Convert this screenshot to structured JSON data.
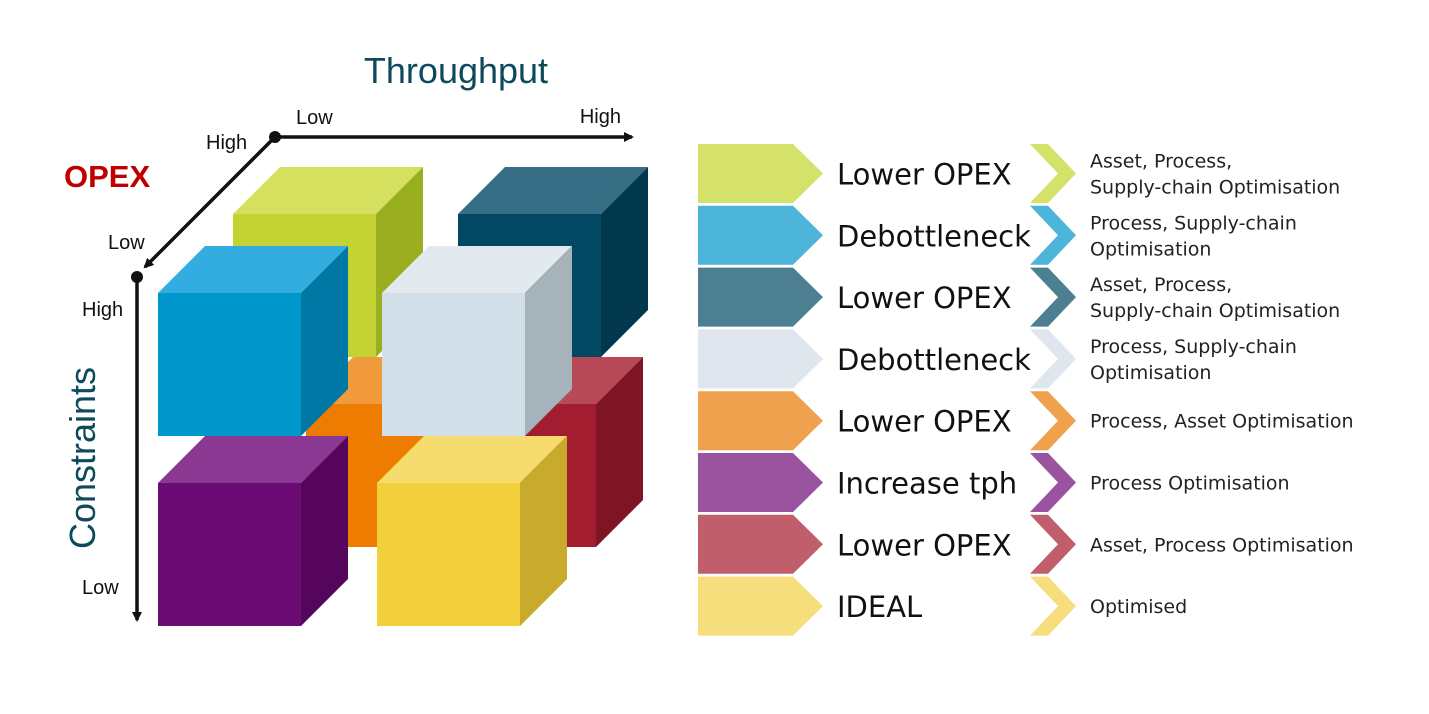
{
  "axes": {
    "throughput": {
      "title": "Throughput",
      "low": "Low",
      "high": "High"
    },
    "opex": {
      "title": "OPEX",
      "high": "High",
      "low": "Low"
    },
    "constraints": {
      "title": "Constraints",
      "high": "High",
      "low": "Low"
    }
  },
  "colors": {
    "axis_title": "#0d4a5c",
    "opex_title": "#c00000",
    "axis_line": "#111111"
  },
  "cubes": [
    {
      "id": "back-top-left",
      "front": "#c3d334",
      "top": "#d4e05e",
      "side": "#9aae22"
    },
    {
      "id": "back-top-right",
      "front": "#034863",
      "top": "#356e85",
      "side": "#02384d"
    },
    {
      "id": "back-bottom-left",
      "front": "#ee7c00",
      "top": "#f09a3c",
      "side": "#bb6000"
    },
    {
      "id": "back-bottom-right",
      "front": "#a11d2f",
      "top": "#b84a58",
      "side": "#7f1524"
    },
    {
      "id": "front-top-left",
      "front": "#0097cc",
      "top": "#33ace0",
      "side": "#0078a6"
    },
    {
      "id": "front-top-right",
      "front": "#d2dfe8",
      "top": "#e2eaf0",
      "side": "#a7b3bb"
    },
    {
      "id": "front-bottom-left",
      "front": "#6b0b73",
      "top": "#8a3891",
      "side": "#55065c"
    },
    {
      "id": "front-bottom-right",
      "front": "#f2d03b",
      "top": "#f6db6e",
      "side": "#c8ab2c"
    }
  ],
  "legend": [
    {
      "color": "#d4e26a",
      "title": "Lower OPEX",
      "desc": [
        "Asset, Process,",
        "Supply-chain Optimisation"
      ]
    },
    {
      "color": "#4db4da",
      "title": "Debottleneck",
      "desc": [
        "Process, Supply-chain",
        "Optimisation"
      ]
    },
    {
      "color": "#4d7f92",
      "title": "Lower OPEX",
      "desc": [
        "Asset, Process,",
        "Supply-chain Optimisation"
      ]
    },
    {
      "color": "#dfe6ed",
      "title": "Debottleneck",
      "desc": [
        "Process, Supply-chain",
        "Optimisation"
      ]
    },
    {
      "color": "#f0a14e",
      "title": "Lower OPEX",
      "desc": [
        "Process, Asset Optimisation"
      ]
    },
    {
      "color": "#9a539e",
      "title": "Increase tph",
      "desc": [
        "Process Optimisation"
      ]
    },
    {
      "color": "#c05f6b",
      "title": "Lower OPEX",
      "desc": [
        "Asset, Process Optimisation"
      ]
    },
    {
      "color": "#f6de7c",
      "title": "IDEAL",
      "desc": [
        "Optimised"
      ]
    }
  ]
}
